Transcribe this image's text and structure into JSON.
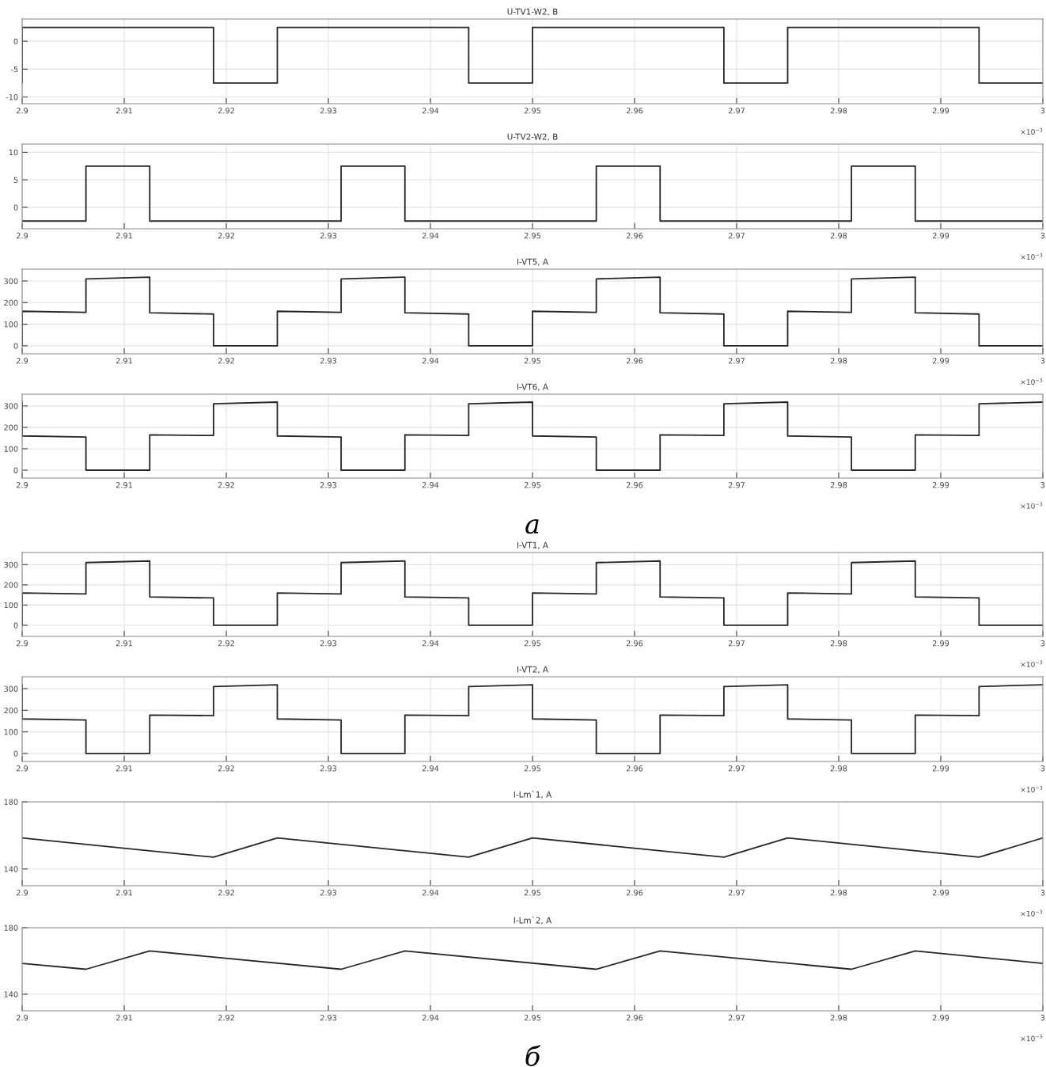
{
  "chart_data": [
    {
      "type": "line",
      "title": "U-TV1-W2, B",
      "xlim": [
        2.9,
        3
      ],
      "xticks": [
        2.9,
        2.91,
        2.92,
        2.93,
        2.94,
        2.95,
        2.96,
        2.97,
        2.98,
        2.99,
        3
      ],
      "ylim": [
        -11.2,
        4
      ],
      "yticks": [
        -10,
        -5,
        0
      ],
      "grid": true,
      "annotations": [
        "×10$^{−3}$"
      ],
      "series": [
        {
          "color": "#262626",
          "x": [
            2.9,
            2.9,
            2.90625,
            2.90625,
            2.9125,
            2.9125,
            2.91875,
            2.91875,
            2.925,
            2.925,
            2.93125,
            2.93125,
            2.9375,
            2.9375,
            2.94375,
            2.94375,
            2.95,
            2.95,
            2.95625,
            2.95625,
            2.9625,
            2.9625,
            2.96875,
            2.96875,
            2.975,
            2.975,
            2.98125,
            2.98125,
            2.9875,
            2.9875,
            2.99375,
            2.99375,
            3
          ],
          "values": [
            -7.5,
            2.5,
            2.5,
            2.5,
            2.5,
            2.5,
            2.5,
            -7.5,
            -7.5,
            2.5,
            2.5,
            2.5,
            2.5,
            2.5,
            2.5,
            -7.5,
            -7.5,
            2.5,
            2.5,
            2.5,
            2.5,
            2.5,
            2.5,
            -7.5,
            -7.5,
            2.5,
            2.5,
            2.5,
            2.5,
            2.5,
            2.5,
            -7.5,
            -7.5
          ]
        }
      ]
    },
    {
      "type": "line",
      "title": "U-TV2-W2, B",
      "xlim": [
        2.9,
        3
      ],
      "xticks": [
        2.9,
        2.91,
        2.92,
        2.93,
        2.94,
        2.95,
        2.96,
        2.97,
        2.98,
        2.99,
        3
      ],
      "ylim": [
        -3.9,
        11.5
      ],
      "yticks": [
        0,
        5,
        10
      ],
      "grid": true,
      "annotations": [
        "×10$^{−3}$"
      ],
      "series": [
        {
          "color": "#262626",
          "x": [
            2.9,
            2.90625,
            2.90625,
            2.9125,
            2.9125,
            2.91875,
            2.91875,
            2.925,
            2.925,
            2.93125,
            2.93125,
            2.9375,
            2.9375,
            2.94375,
            2.94375,
            2.95,
            2.95,
            2.95625,
            2.95625,
            2.9625,
            2.9625,
            2.96875,
            2.96875,
            2.975,
            2.975,
            2.98125,
            2.98125,
            2.9875,
            2.9875,
            2.99375,
            2.99375,
            3
          ],
          "values": [
            -2.5,
            -2.5,
            7.5,
            7.5,
            -2.5,
            -2.5,
            -2.5,
            -2.5,
            -2.5,
            -2.5,
            7.5,
            7.5,
            -2.5,
            -2.5,
            -2.5,
            -2.5,
            -2.5,
            -2.5,
            7.5,
            7.5,
            -2.5,
            -2.5,
            -2.5,
            -2.5,
            -2.5,
            -2.5,
            7.5,
            7.5,
            -2.5,
            -2.5,
            -2.5,
            -2.5
          ]
        }
      ]
    },
    {
      "type": "line",
      "title": "I-VT5, A",
      "xlim": [
        2.9,
        3
      ],
      "xticks": [
        2.9,
        2.91,
        2.92,
        2.93,
        2.94,
        2.95,
        2.96,
        2.97,
        2.98,
        2.99,
        3
      ],
      "ylim": [
        -37,
        355
      ],
      "yticks": [
        0,
        100,
        200,
        300
      ],
      "grid": true,
      "annotations": [
        "×10$^{−3}$"
      ],
      "series": [
        {
          "color": "#262626",
          "x": [
            2.9,
            2.9,
            2.90625,
            2.90625,
            2.9125,
            2.9125,
            2.91875,
            2.91875,
            2.925,
            2.925,
            2.93125,
            2.93125,
            2.9375,
            2.9375,
            2.94375,
            2.94375,
            2.95,
            2.95,
            2.95625,
            2.95625,
            2.9625,
            2.9625,
            2.96875,
            2.96875,
            2.975,
            2.975,
            2.98125,
            2.98125,
            2.9875,
            2.9875,
            2.99375,
            2.99375,
            3
          ],
          "values": [
            0,
            160,
            155,
            310,
            318,
            153,
            147,
            0,
            0,
            160,
            155,
            310,
            318,
            153,
            147,
            0,
            0,
            160,
            155,
            310,
            318,
            153,
            147,
            0,
            0,
            160,
            155,
            310,
            318,
            153,
            147,
            0,
            0
          ]
        }
      ]
    },
    {
      "type": "line",
      "title": "I-VT6, A",
      "xlim": [
        2.9,
        3
      ],
      "xticks": [
        2.9,
        2.91,
        2.92,
        2.93,
        2.94,
        2.95,
        2.96,
        2.97,
        2.98,
        2.99,
        3
      ],
      "ylim": [
        -37,
        355
      ],
      "yticks": [
        0,
        100,
        200,
        300
      ],
      "grid": true,
      "annotations": [
        "×10$^{−3}$",
        "а"
      ],
      "series": [
        {
          "color": "#262626",
          "x": [
            2.9,
            2.9,
            2.90625,
            2.90625,
            2.9125,
            2.9125,
            2.91875,
            2.91875,
            2.925,
            2.925,
            2.93125,
            2.93125,
            2.9375,
            2.9375,
            2.94375,
            2.94375,
            2.95,
            2.95,
            2.95625,
            2.95625,
            2.9625,
            2.9625,
            2.96875,
            2.96875,
            2.975,
            2.975,
            2.98125,
            2.98125,
            2.9875,
            2.9875,
            2.99375,
            2.99375,
            3
          ],
          "values": [
            318,
            160,
            155,
            0,
            0,
            165,
            162,
            310,
            318,
            160,
            155,
            0,
            0,
            165,
            162,
            310,
            318,
            160,
            155,
            0,
            0,
            165,
            162,
            310,
            318,
            160,
            155,
            0,
            0,
            165,
            162,
            310,
            318
          ]
        }
      ]
    },
    {
      "type": "line",
      "title": "I-VT1, A",
      "xlim": [
        2.9,
        3
      ],
      "xticks": [
        2.9,
        2.91,
        2.92,
        2.93,
        2.94,
        2.95,
        2.96,
        2.97,
        2.98,
        2.99,
        3
      ],
      "ylim": [
        -55,
        360
      ],
      "yticks": [
        0,
        100,
        200,
        300
      ],
      "grid": true,
      "annotations": [
        "×10$^{−3}$"
      ],
      "series": [
        {
          "color": "#262626",
          "x": [
            2.9,
            2.9,
            2.90625,
            2.90625,
            2.9125,
            2.9125,
            2.91875,
            2.91875,
            2.925,
            2.925,
            2.93125,
            2.93125,
            2.9375,
            2.9375,
            2.94375,
            2.94375,
            2.95,
            2.95,
            2.95625,
            2.95625,
            2.9625,
            2.9625,
            2.96875,
            2.96875,
            2.975,
            2.975,
            2.98125,
            2.98125,
            2.9875,
            2.9875,
            2.99375,
            2.99375,
            3
          ],
          "values": [
            0,
            160,
            155,
            310,
            318,
            140,
            135,
            0,
            0,
            160,
            155,
            310,
            318,
            140,
            135,
            0,
            0,
            160,
            155,
            310,
            318,
            140,
            135,
            0,
            0,
            160,
            155,
            310,
            318,
            140,
            135,
            0,
            0
          ]
        }
      ]
    },
    {
      "type": "line",
      "title": "I-VT2, A",
      "xlim": [
        2.9,
        3
      ],
      "xticks": [
        2.9,
        2.91,
        2.92,
        2.93,
        2.94,
        2.95,
        2.96,
        2.97,
        2.98,
        2.99,
        3
      ],
      "ylim": [
        -37,
        355
      ],
      "yticks": [
        0,
        100,
        200,
        300
      ],
      "grid": true,
      "annotations": [
        "×10$^{−3}$"
      ],
      "series": [
        {
          "color": "#262626",
          "x": [
            2.9,
            2.9,
            2.90625,
            2.90625,
            2.9125,
            2.9125,
            2.91875,
            2.91875,
            2.925,
            2.925,
            2.93125,
            2.93125,
            2.9375,
            2.9375,
            2.94375,
            2.94375,
            2.95,
            2.95,
            2.95625,
            2.95625,
            2.9625,
            2.9625,
            2.96875,
            2.96875,
            2.975,
            2.975,
            2.98125,
            2.98125,
            2.9875,
            2.9875,
            2.99375,
            2.99375,
            3
          ],
          "values": [
            318,
            160,
            155,
            0,
            0,
            178,
            175,
            310,
            318,
            160,
            155,
            0,
            0,
            178,
            175,
            310,
            318,
            160,
            155,
            0,
            0,
            178,
            175,
            310,
            318,
            160,
            155,
            0,
            0,
            178,
            175,
            310,
            318
          ]
        }
      ]
    },
    {
      "type": "line",
      "title": "I-Lm`1, A",
      "xlim": [
        2.9,
        3
      ],
      "xticks": [
        2.9,
        2.91,
        2.92,
        2.93,
        2.94,
        2.95,
        2.96,
        2.97,
        2.98,
        2.99,
        3
      ],
      "ylim": [
        130,
        180
      ],
      "yticks": [
        140,
        180
      ],
      "grid": true,
      "annotations": [
        "×10$^{−3}$"
      ],
      "series": [
        {
          "color": "#262626",
          "x": [
            2.9,
            2.91875,
            2.925,
            2.94375,
            2.95,
            2.96875,
            2.975,
            2.99375,
            3
          ],
          "values": [
            158.5,
            147,
            158.5,
            147,
            158.5,
            147,
            158.5,
            147,
            158.5
          ]
        }
      ]
    },
    {
      "type": "line",
      "title": "I-Lm`2, A",
      "xlim": [
        2.9,
        3
      ],
      "xticks": [
        2.9,
        2.91,
        2.92,
        2.93,
        2.94,
        2.95,
        2.96,
        2.97,
        2.98,
        2.99,
        3
      ],
      "ylim": [
        130,
        180
      ],
      "yticks": [
        140,
        180
      ],
      "grid": true,
      "annotations": [
        "×10$^{−3}$",
        "б"
      ],
      "series": [
        {
          "color": "#262626",
          "x": [
            2.9,
            2.90625,
            2.9125,
            2.93125,
            2.9375,
            2.95625,
            2.9625,
            2.98125,
            2.9875,
            3
          ],
          "values": [
            158.5,
            155,
            166,
            155,
            166,
            155,
            166,
            155,
            166,
            158.5
          ]
        }
      ]
    }
  ]
}
